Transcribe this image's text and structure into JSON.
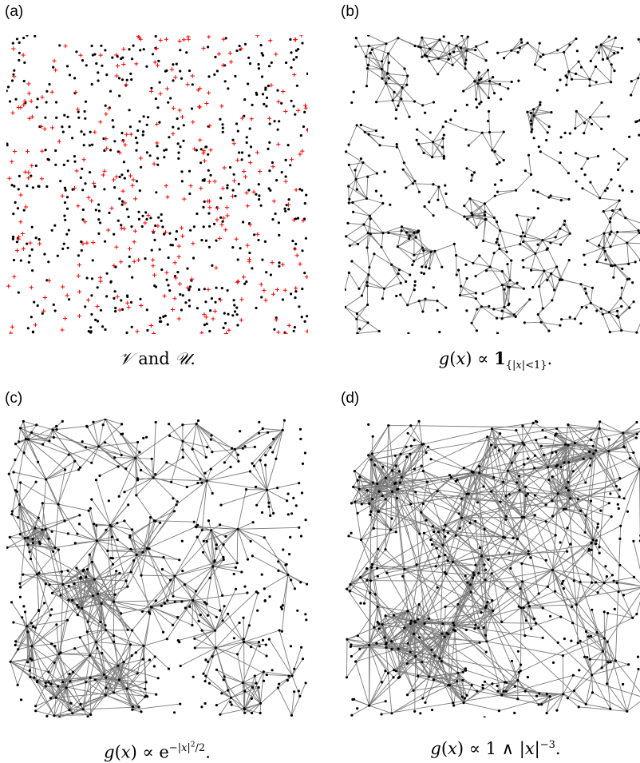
{
  "panels": [
    {
      "label": "(a)",
      "caption_html": "<i>𝒱</i> and <i>𝒰</i>.",
      "mode": "points",
      "seed": 11,
      "kernel": "none"
    },
    {
      "label": "(b)",
      "caption_html": "<i>g</i>(<i>x</i>) ∝ <b>1</b><sub>{|<i>x</i>|&lt;1}</sub>.",
      "mode": "graph",
      "seed": 23,
      "kernel": "indicator"
    },
    {
      "label": "(c)",
      "caption_html": "<i>g</i>(<i>x</i>) ∝ e<sup>−|<i>x</i>|<sup style='font-size:9px'>2</sup>/2</sup>.",
      "mode": "graph",
      "seed": 37,
      "kernel": "gaussian"
    },
    {
      "label": "(d)",
      "caption_html": "<i>g</i>(<i>x</i>) ∝ 1 ∧ |<i>x</i>|<sup>−3</sup>.",
      "mode": "graph",
      "seed": 53,
      "kernel": "powerlaw"
    }
  ],
  "colors": {
    "vertex": "#000000",
    "cross": "#ff0000",
    "edge": "#7a7a7a"
  }
}
